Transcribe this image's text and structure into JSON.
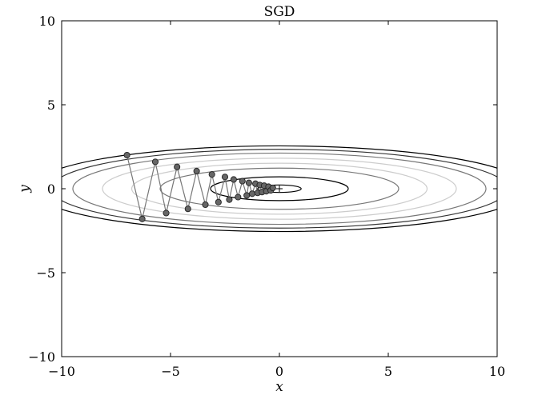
{
  "chart_data": {
    "type": "line",
    "title": "SGD",
    "xlabel": "x",
    "ylabel": "y",
    "xlim": [
      -10,
      10
    ],
    "ylim": [
      -10,
      10
    ],
    "xticks": [
      -10,
      -5,
      0,
      5,
      10
    ],
    "yticks": [
      -10,
      -5,
      0,
      5,
      10
    ],
    "xtick_labels": [
      "−10",
      "−5",
      "0",
      "5",
      "10"
    ],
    "ytick_labels": [
      "−10",
      "−5",
      "0",
      "5",
      "10"
    ],
    "grid": false,
    "contours": {
      "function": "x^2/20 + y^2",
      "levels": [
        0.05,
        0.5,
        1.5,
        2.3,
        3.3,
        4.5,
        5.5,
        6.5
      ],
      "colors": [
        "#000000",
        "#000000",
        "#777777",
        "#cccccc",
        "#cccccc",
        "#777777",
        "#333333",
        "#000000"
      ]
    },
    "path": {
      "marker_color": "#666666",
      "line_color": "#777777",
      "x": [
        -7.0,
        -6.3,
        -5.7,
        -5.2,
        -4.7,
        -4.2,
        -3.8,
        -3.4,
        -3.1,
        -2.8,
        -2.5,
        -2.3,
        -2.1,
        -1.9,
        -1.7,
        -1.5,
        -1.4,
        -1.25,
        -1.1,
        -1.0,
        -0.9,
        -0.8,
        -0.7,
        -0.6,
        -0.5,
        -0.4,
        -0.3
      ],
      "y": [
        2.0,
        -1.8,
        1.6,
        -1.45,
        1.3,
        -1.2,
        1.05,
        -0.95,
        0.85,
        -0.8,
        0.7,
        -0.65,
        0.55,
        -0.5,
        0.45,
        -0.4,
        0.35,
        -0.3,
        0.3,
        -0.25,
        0.22,
        -0.2,
        0.18,
        -0.15,
        0.12,
        -0.1,
        0.05
      ]
    },
    "minimum_marker": {
      "x": 0,
      "y": 0,
      "symbol": "+"
    }
  }
}
